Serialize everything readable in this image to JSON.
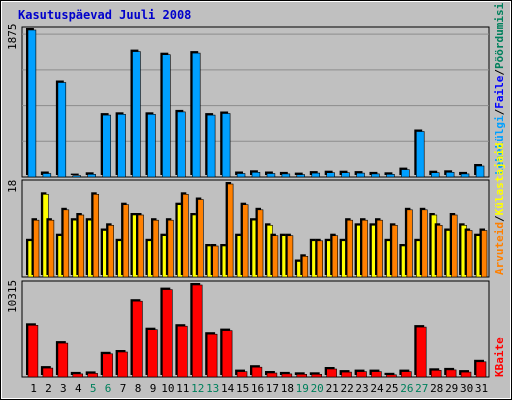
{
  "title": "Kasutuspäevad Juuli 2008",
  "colors": {
    "title": "#0000cc",
    "background": "#c0c0c0",
    "pages": "#00a0ff",
    "files": "#0000ff",
    "hits": "#00805c",
    "visits": "#ff8000",
    "sites": "#ffff00",
    "kbytes": "#ff0000",
    "weekend": "#00805c",
    "weekday": "#000000",
    "grid": "#8c8c8c"
  },
  "legend": {
    "hits": "Pöördumisi",
    "files": "Faile",
    "pages": "Lehekülgi",
    "sep1": "/",
    "sep2": "/",
    "sites": "Külastajaid",
    "visits": "Arvuteid",
    "sep3": "/",
    "kbytes": "KBaite"
  },
  "chart_data": [
    {
      "type": "bar",
      "name": "top",
      "categories": [
        "1",
        "2",
        "3",
        "4",
        "5",
        "6",
        "7",
        "8",
        "9",
        "10",
        "11",
        "12",
        "13",
        "14",
        "15",
        "16",
        "17",
        "18",
        "19",
        "20",
        "21",
        "22",
        "23",
        "24",
        "25",
        "26",
        "27",
        "28",
        "29",
        "30",
        "31"
      ],
      "weekend_days": [
        "5",
        "6",
        "12",
        "13",
        "19",
        "20",
        "26",
        "27"
      ],
      "ymax_label": "1875",
      "ylim": [
        0,
        1875
      ],
      "series": [
        {
          "name": "Pöördumisi",
          "values": [
            1875,
            45,
            1205,
            18,
            35,
            790,
            800,
            1600,
            800,
            1560,
            830,
            1580,
            790,
            810,
            45,
            60,
            45,
            40,
            30,
            50,
            55,
            55,
            50,
            40,
            35,
            95,
            580,
            55,
            60,
            40,
            140
          ]
        },
        {
          "name": "Faile",
          "values": [
            1850,
            40,
            1180,
            15,
            30,
            780,
            790,
            1560,
            790,
            1540,
            810,
            1540,
            780,
            790,
            40,
            55,
            40,
            35,
            25,
            45,
            50,
            50,
            45,
            35,
            30,
            90,
            550,
            50,
            55,
            35,
            130
          ]
        },
        {
          "name": "Lehekülgi",
          "values": [
            1840,
            38,
            1170,
            14,
            28,
            770,
            780,
            1550,
            780,
            1530,
            800,
            1530,
            770,
            780,
            38,
            50,
            38,
            33,
            22,
            42,
            48,
            48,
            42,
            32,
            28,
            85,
            540,
            48,
            52,
            32,
            125
          ]
        }
      ]
    },
    {
      "type": "bar",
      "name": "middle",
      "categories": [
        "1",
        "2",
        "3",
        "4",
        "5",
        "6",
        "7",
        "8",
        "9",
        "10",
        "11",
        "12",
        "13",
        "14",
        "15",
        "16",
        "17",
        "18",
        "19",
        "20",
        "21",
        "22",
        "23",
        "24",
        "25",
        "26",
        "27",
        "28",
        "29",
        "30",
        "31"
      ],
      "ymax_label": "18",
      "ylim": [
        0,
        18
      ],
      "series": [
        {
          "name": "Külastajaid",
          "values": [
            7,
            16,
            8,
            11,
            11,
            9,
            7,
            12,
            7,
            8,
            14,
            12,
            6,
            6,
            8,
            11,
            10,
            8,
            3,
            7,
            7,
            7,
            10,
            10,
            7,
            6,
            7,
            12,
            9,
            10,
            8
          ]
        },
        {
          "name": "Arvuteid",
          "values": [
            11,
            11,
            13,
            12,
            16,
            10,
            14,
            12,
            11,
            11,
            16,
            15,
            6,
            18,
            14,
            13,
            8,
            8,
            4,
            7,
            8,
            11,
            11,
            11,
            10,
            13,
            13,
            10,
            12,
            9,
            9
          ]
        }
      ]
    },
    {
      "type": "bar",
      "name": "bottom",
      "categories": [
        "1",
        "2",
        "3",
        "4",
        "5",
        "6",
        "7",
        "8",
        "9",
        "10",
        "11",
        "12",
        "13",
        "14",
        "15",
        "16",
        "17",
        "18",
        "19",
        "20",
        "21",
        "22",
        "23",
        "24",
        "25",
        "26",
        "27",
        "28",
        "29",
        "30",
        "31"
      ],
      "ymax_label": "10315",
      "ylim": [
        0,
        10315
      ],
      "series": [
        {
          "name": "KBaite",
          "values": [
            5800,
            1000,
            3800,
            350,
            400,
            2600,
            2800,
            8500,
            5300,
            9800,
            5700,
            10315,
            4800,
            5200,
            600,
            1100,
            450,
            350,
            300,
            300,
            900,
            550,
            600,
            600,
            250,
            600,
            5600,
            750,
            800,
            550,
            1700
          ]
        }
      ]
    }
  ]
}
